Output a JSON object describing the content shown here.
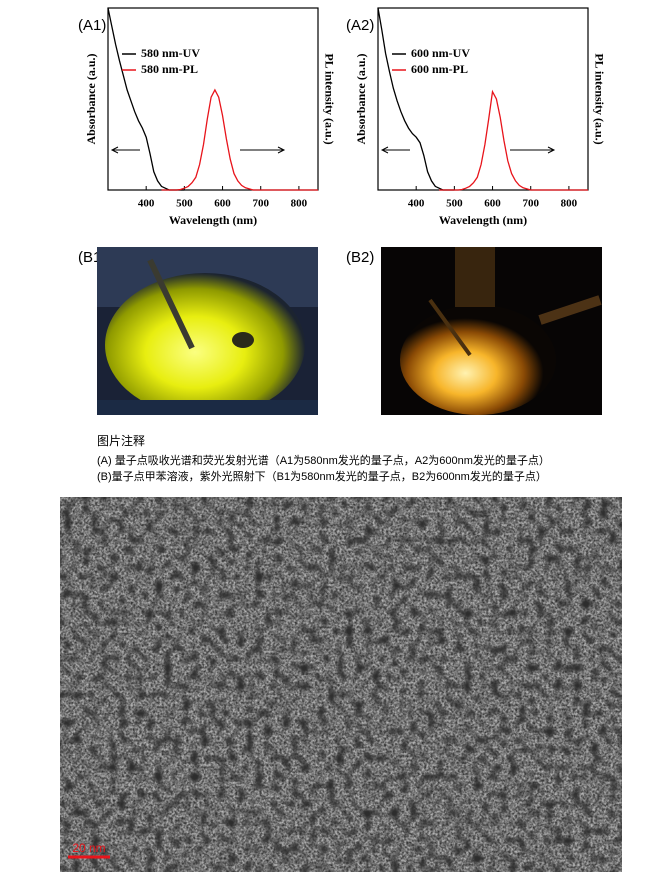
{
  "chart_data": [
    {
      "type": "line",
      "label": "(A1)",
      "xlabel": "Wavelength (nm)",
      "ylabel": "Absorbance (a.u.)",
      "y2label": "PL intensity (a.u.)",
      "x": [
        300,
        310,
        320,
        330,
        340,
        350,
        360,
        370,
        380,
        390,
        400,
        410,
        420,
        430,
        440,
        450,
        460,
        470,
        480,
        490,
        500,
        510,
        520,
        530,
        540,
        550,
        560,
        570,
        580,
        590,
        600,
        610,
        620,
        630,
        640,
        650,
        660,
        670,
        680,
        690,
        700,
        710,
        720,
        730,
        740,
        750,
        760,
        770,
        780,
        790,
        800,
        810,
        820,
        830,
        840,
        850
      ],
      "xlim": [
        300,
        850
      ],
      "xticks": [
        400,
        500,
        600,
        700,
        800
      ],
      "ylim": [
        0,
        1
      ],
      "legend": "upper-left",
      "series": [
        {
          "name": "580 nm-UV",
          "color": "#000000",
          "values": [
            1.0,
            0.9,
            0.8,
            0.71,
            0.63,
            0.55,
            0.49,
            0.43,
            0.38,
            0.34,
            0.29,
            0.2,
            0.1,
            0.05,
            0.02,
            0.01,
            0,
            0,
            0,
            0,
            0,
            null,
            null,
            null,
            null,
            null,
            null,
            null,
            null,
            null,
            null,
            null,
            null,
            null,
            null,
            null,
            null,
            null,
            null,
            null,
            null,
            null,
            null,
            null,
            null,
            null,
            null,
            null,
            null,
            null,
            null,
            null,
            null,
            null,
            null,
            null
          ]
        },
        {
          "name": "580 nm-PL",
          "color": "#e8141b",
          "values": [
            null,
            null,
            null,
            null,
            null,
            null,
            null,
            null,
            null,
            null,
            null,
            null,
            null,
            null,
            0,
            0,
            0,
            0,
            0,
            0.003,
            0.01,
            0.02,
            0.04,
            0.07,
            0.14,
            0.25,
            0.39,
            0.51,
            0.55,
            0.51,
            0.41,
            0.28,
            0.17,
            0.09,
            0.05,
            0.025,
            0.012,
            0.006,
            0,
            0,
            0,
            0,
            0,
            0,
            0,
            0,
            0,
            0,
            0,
            0,
            0,
            0,
            0,
            0,
            0,
            0
          ]
        }
      ]
    },
    {
      "type": "line",
      "label": "(A2)",
      "xlabel": "Wavelength (nm)",
      "ylabel": "Absorbance (a.u.)",
      "y2label": "PL intensity (a.u.)",
      "x": [
        300,
        310,
        320,
        330,
        340,
        350,
        360,
        370,
        380,
        390,
        400,
        410,
        420,
        430,
        440,
        450,
        460,
        470,
        480,
        490,
        500,
        510,
        520,
        530,
        540,
        550,
        560,
        570,
        580,
        590,
        600,
        610,
        620,
        630,
        640,
        650,
        660,
        670,
        680,
        690,
        700,
        710,
        720,
        730,
        740,
        750,
        760,
        770,
        780,
        790,
        800,
        810,
        820,
        830,
        840,
        850
      ],
      "xlim": [
        300,
        850
      ],
      "xticks": [
        400,
        500,
        600,
        700,
        800
      ],
      "ylim": [
        0,
        1
      ],
      "legend": "upper-left",
      "series": [
        {
          "name": "600 nm-UV",
          "color": "#000000",
          "values": [
            1.0,
            0.88,
            0.75,
            0.65,
            0.56,
            0.49,
            0.43,
            0.38,
            0.34,
            0.31,
            0.29,
            0.26,
            0.19,
            0.1,
            0.05,
            0.02,
            0.01,
            0,
            0,
            0,
            0,
            null,
            null,
            null,
            null,
            null,
            null,
            null,
            null,
            null,
            null,
            null,
            null,
            null,
            null,
            null,
            null,
            null,
            null,
            null,
            null,
            null,
            null,
            null,
            null,
            null,
            null,
            null,
            null,
            null,
            null,
            null,
            null,
            null,
            null,
            null
          ]
        },
        {
          "name": "600 nm-PL",
          "color": "#e8141b",
          "values": [
            null,
            null,
            null,
            null,
            null,
            null,
            null,
            null,
            null,
            null,
            null,
            null,
            null,
            null,
            null,
            null,
            0,
            0,
            0,
            0,
            0,
            0,
            0.003,
            0.01,
            0.02,
            0.04,
            0.07,
            0.14,
            0.25,
            0.39,
            0.54,
            0.5,
            0.4,
            0.27,
            0.16,
            0.09,
            0.05,
            0.025,
            0.012,
            0.006,
            0,
            0,
            0,
            0,
            0,
            0,
            0,
            0,
            0,
            0,
            0,
            0,
            0,
            0,
            0,
            0
          ]
        }
      ]
    }
  ],
  "photos": {
    "b1": "(B1)",
    "b2": "(B2)"
  },
  "caption": {
    "title": "图片注释",
    "lines": [
      "(A) 量子点吸收光谱和荧光发射光谱（A1为580nm发光的量子点，A2为600nm发光的量子点）",
      "(B)量子点甲苯溶液，紫外光照射下（B1为580nm发光的量子点，B2为600nm发光的量子点）"
    ]
  },
  "tem": {
    "scale_bar": "20 nm"
  }
}
